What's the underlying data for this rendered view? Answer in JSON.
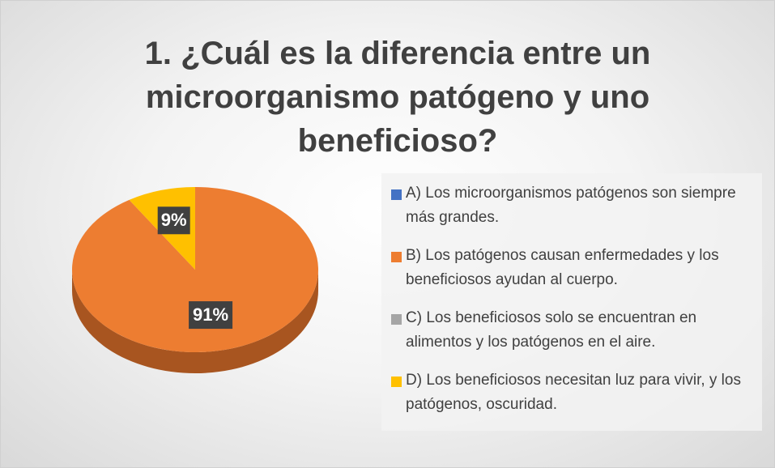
{
  "chart_data": {
    "type": "pie",
    "title": "1. ¿Cuál es la diferencia entre un microorganismo patógeno y uno beneficioso?",
    "categories": [
      "A) Los microorganismos patógenos son siempre más grandes.",
      "B) Los patógenos causan enfermedades y los beneficiosos ayudan al cuerpo.",
      "C) Los beneficiosos solo se encuentran en alimentos y los patógenos en el aire.",
      "D) Los beneficiosos necesitan luz para vivir, y los patógenos, oscuridad."
    ],
    "values": [
      0,
      91,
      0,
      9
    ],
    "value_labels": [
      null,
      "91%",
      null,
      "9%"
    ],
    "colors": [
      "#4472c4",
      "#ed7d31",
      "#a5a5a5",
      "#ffc000"
    ],
    "legend": "right"
  }
}
